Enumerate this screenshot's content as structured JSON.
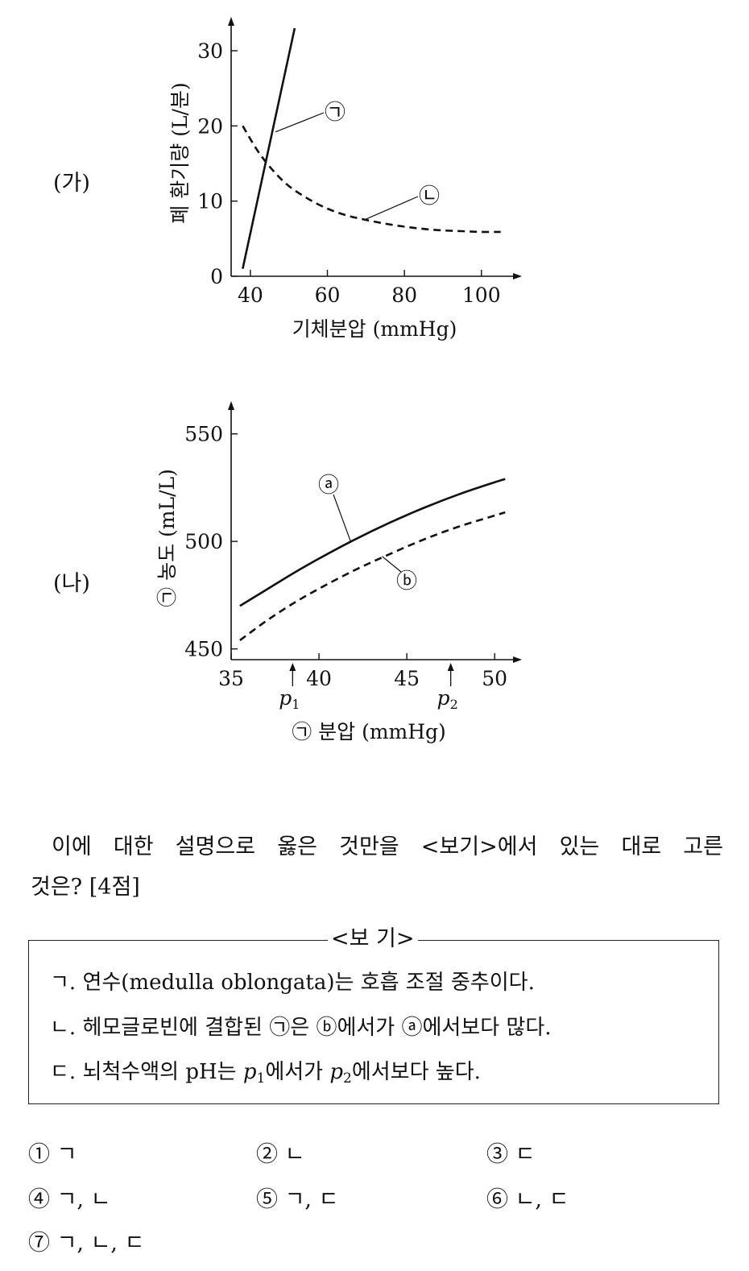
{
  "panels": {
    "ga_label": "(가)",
    "na_label": "(나)"
  },
  "chart_data": [
    {
      "type": "line",
      "panel": "(가)",
      "xlabel": "기체분압 (mmHg)",
      "ylabel": "폐 환기량 (L/분)",
      "xlim": [
        35,
        108
      ],
      "ylim": [
        0,
        33
      ],
      "x_ticks": [
        40,
        60,
        80,
        100
      ],
      "y_ticks": [
        0,
        10,
        20,
        30
      ],
      "grid": false,
      "series": [
        {
          "name": "㉠",
          "style": "solid",
          "points": [
            [
              38,
              1
            ],
            [
              51.5,
              33
            ]
          ]
        },
        {
          "name": "㉡",
          "style": "dashed",
          "points": [
            [
              38,
              20
            ],
            [
              42,
              16.6
            ],
            [
              46,
              14
            ],
            [
              50,
              12
            ],
            [
              55,
              10.3
            ],
            [
              60,
              9
            ],
            [
              65,
              8.1
            ],
            [
              70,
              7.5
            ],
            [
              75,
              7
            ],
            [
              80,
              6.6
            ],
            [
              85,
              6.3
            ],
            [
              90,
              6.1
            ],
            [
              95,
              6
            ],
            [
              100,
              5.9
            ],
            [
              105,
              5.9
            ]
          ]
        }
      ],
      "annotations": [
        {
          "text": "㉠",
          "points_to": [
            46.5,
            19.2
          ]
        },
        {
          "text": "㉡",
          "points_to": [
            70,
            7.6
          ]
        }
      ]
    },
    {
      "type": "line",
      "panel": "(나)",
      "xlabel": "㉠ 분압 (mmHg)",
      "ylabel": "㉠ 농도 (mL/L)",
      "xlim": [
        35,
        51
      ],
      "ylim": [
        445,
        560
      ],
      "x_ticks": [
        35,
        40,
        45,
        50
      ],
      "y_ticks": [
        450,
        500,
        550
      ],
      "grid": false,
      "series": [
        {
          "name": "ⓐ",
          "style": "solid",
          "points": [
            [
              35.5,
              470
            ],
            [
              37,
              477.5
            ],
            [
              38.5,
              485
            ],
            [
              40,
              492
            ],
            [
              42,
              500.7
            ],
            [
              44,
              508.6
            ],
            [
              46,
              515.7
            ],
            [
              48,
              522
            ],
            [
              50,
              527.5
            ],
            [
              50.6,
              529
            ]
          ]
        },
        {
          "name": "ⓑ",
          "style": "dashed",
          "points": [
            [
              35.5,
              454
            ],
            [
              37,
              463
            ],
            [
              38.5,
              471
            ],
            [
              40,
              478
            ],
            [
              42,
              486.5
            ],
            [
              44,
              494
            ],
            [
              46,
              501
            ],
            [
              48,
              507
            ],
            [
              50,
              512
            ],
            [
              50.6,
              513.5
            ]
          ]
        }
      ],
      "annotations": [
        {
          "text": "ⓐ",
          "points_to": [
            41.8,
            500
          ]
        },
        {
          "text": "ⓑ",
          "points_to": [
            43.6,
            493
          ]
        }
      ],
      "markers": [
        {
          "label": "p₁",
          "x": 38.5,
          "label_main": "p",
          "label_sub": "1"
        },
        {
          "label": "p₂",
          "x": 47.5,
          "label_main": "p",
          "label_sub": "2"
        }
      ]
    }
  ],
  "question": {
    "line1": "이에 대한 설명으로 옳은 것만을 <보기>에서 있는 대로 고른",
    "line2": "것은? [4점]"
  },
  "bogi": {
    "title": "<보 기>",
    "item_a": "ㄱ. 연수(medulla oblongata)는 호흡 조절 중추이다.",
    "item_b": "ㄴ. 헤모글로빈에 결합된 ㉠은 ⓑ에서가 ⓐ에서보다 많다.",
    "item_c_prefix": "ㄷ. 뇌척수액의 pH는 ",
    "item_c_p1": "p",
    "item_c_p1_sub": "1",
    "item_c_mid": "에서가 ",
    "item_c_p2": "p",
    "item_c_p2_sub": "2",
    "item_c_suffix": "에서보다 높다."
  },
  "choices": [
    "① ㄱ",
    "② ㄴ",
    "③ ㄷ",
    "④ ㄱ, ㄴ",
    "⑤ ㄱ, ㄷ",
    "⑥ ㄴ, ㄷ",
    "⑦ ㄱ, ㄴ, ㄷ"
  ]
}
